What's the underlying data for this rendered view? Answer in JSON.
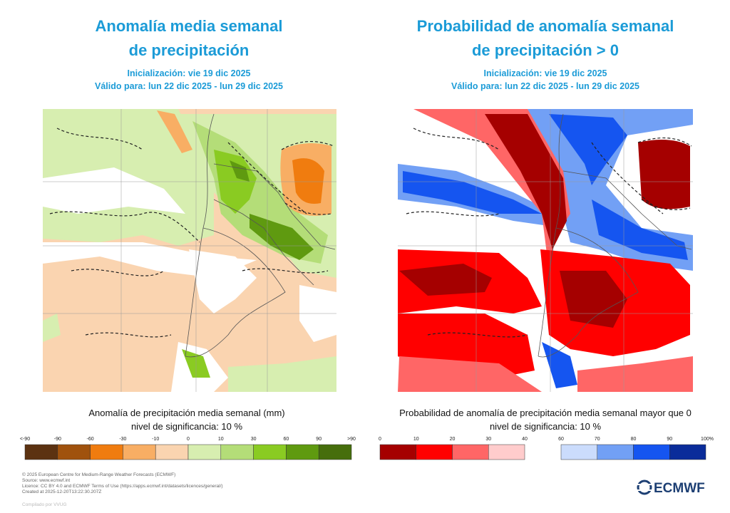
{
  "left": {
    "title": [
      "Anomalía media semanal",
      "de precipitación"
    ],
    "init": "Inicialización: vie 19 dic 2025",
    "valid": "Válido para: lun 22 dic 2025 - lun 29 dic 2025",
    "caption": "Anomalía de precipitación media semanal (mm)",
    "significance": "nivel de significancia: 10 %",
    "legend": [
      "<-90",
      "-90",
      "-60",
      "-30",
      "-10",
      "0",
      "10",
      "30",
      "60",
      "90",
      ">90"
    ]
  },
  "right": {
    "title": [
      "Probabilidad de anomalía semanal",
      "de precipitación > 0"
    ],
    "init": "Inicialización: vie 19 dic 2025",
    "valid": "Válido para: lun 22 dic 2025 - lun 29 dic 2025",
    "caption": "Probabilidad de anomalía de precipitación media semanal mayor que 0",
    "significance": "nivel de significancia: 10 %",
    "legend": [
      "0",
      "10",
      "20",
      "30",
      "40",
      "60",
      "70",
      "80",
      "90",
      "100%"
    ]
  },
  "footer": {
    "lines": [
      "© 2025 European Centre for Medium-Range Weather Forecasts (ECMWF)",
      "Source: www.ecmwf.int",
      "Licence: CC BY 4.0 and ECMWF Terms of Use (https://apps.ecmwf.int/datasets/licences/general/)",
      "Created at 2025-12-20T13:22:30.207Z"
    ],
    "compiled": "Compilado por VVUG"
  },
  "logo": "ECMWF"
}
